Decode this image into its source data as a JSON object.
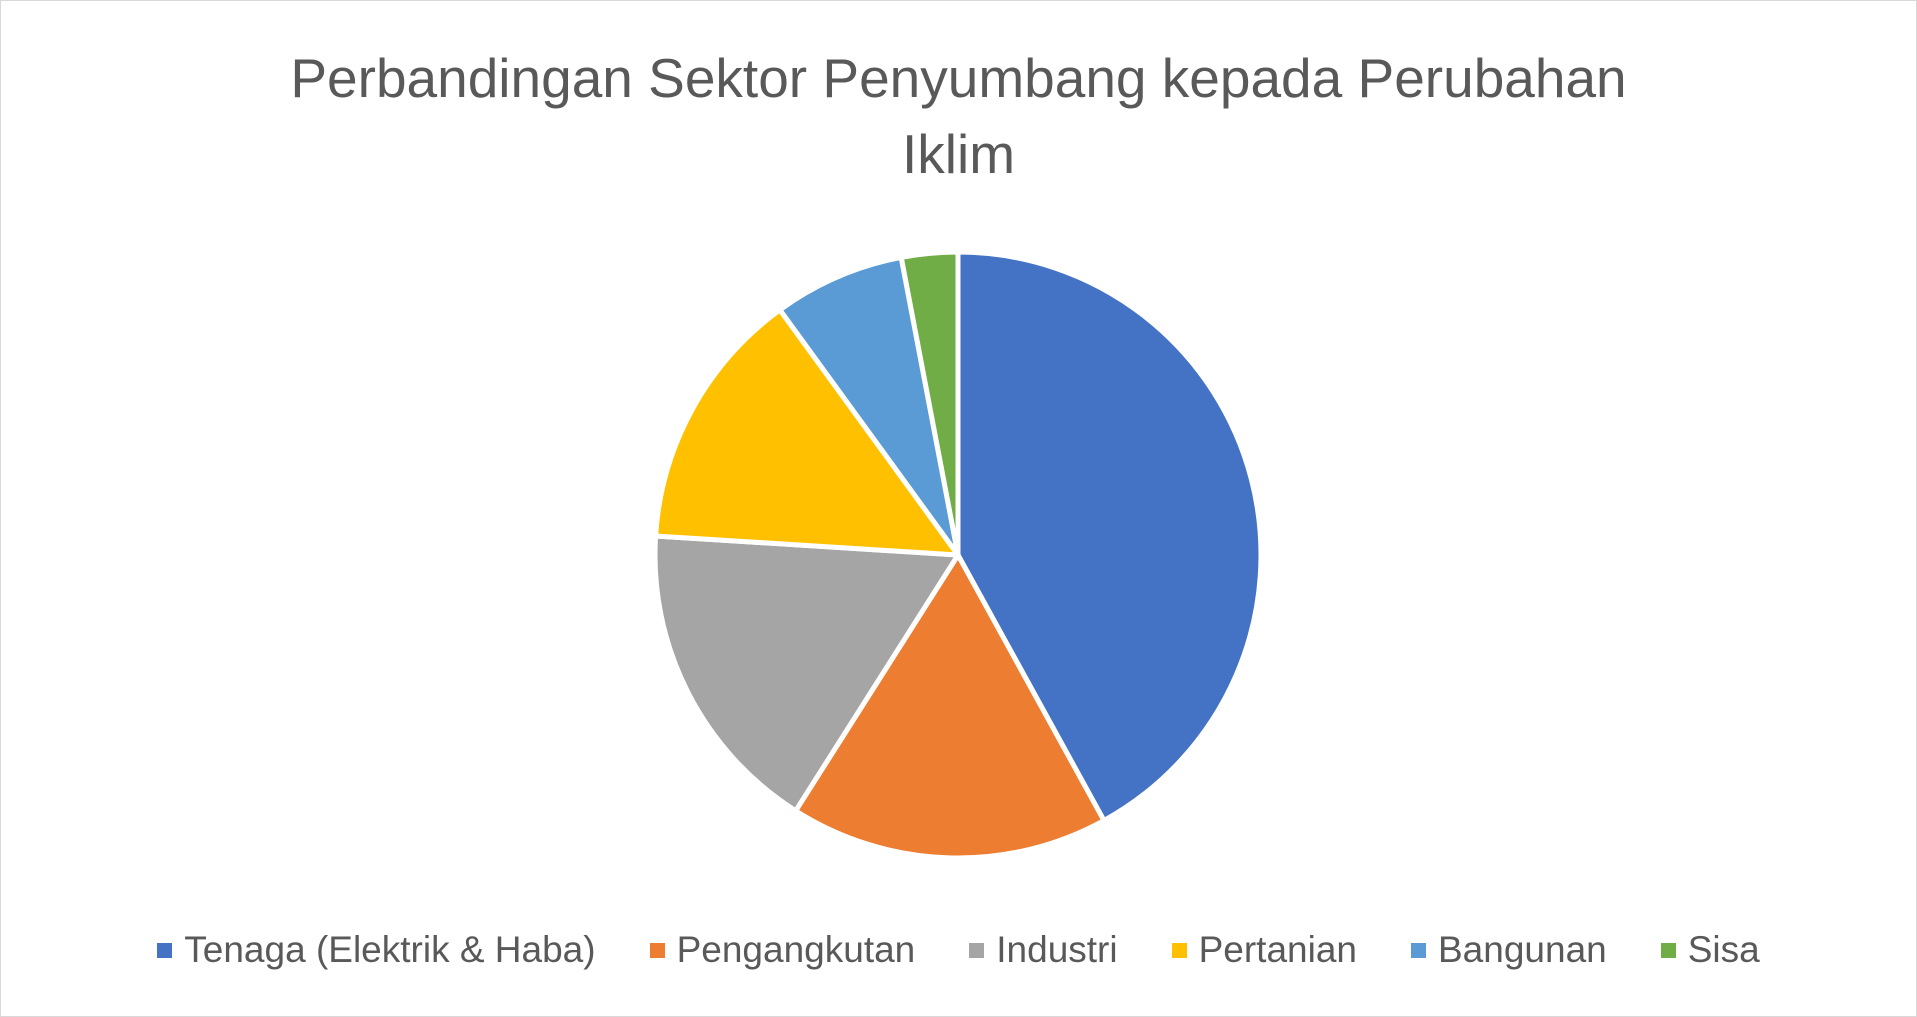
{
  "chart_data": {
    "type": "pie",
    "title_lines": [
      "Perbandingan Sektor Penyumbang kepada Perubahan",
      "Iklim"
    ],
    "categories": [
      "Tenaga (Elektrik & Haba)",
      "Pengangkutan",
      "Industri",
      "Pertanian",
      "Bangunan",
      "Sisa"
    ],
    "values": [
      42,
      17,
      17,
      14,
      7,
      3
    ],
    "colors": [
      "#4472c4",
      "#ed7d31",
      "#a5a5a5",
      "#ffc000",
      "#5b9bd5",
      "#70ad47"
    ],
    "legend_position": "bottom",
    "start_angle": "top",
    "direction": "clockwise"
  }
}
